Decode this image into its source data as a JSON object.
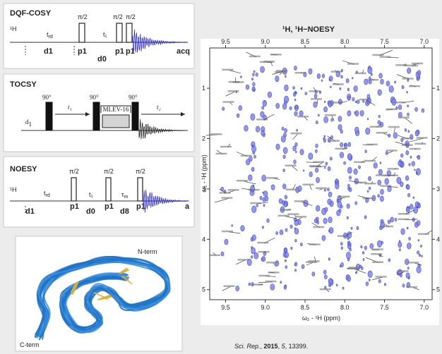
{
  "dqf_cosy": {
    "title": "DQF-COSY",
    "nucleus": "¹H",
    "t_rd": [
      "t",
      "rd"
    ],
    "t1": "t₁",
    "pulse_angles": [
      "π/2",
      "π/2",
      "π/2"
    ],
    "delays": [
      "d1",
      "p1",
      "d0",
      "p1",
      "p1",
      "acq"
    ]
  },
  "tocsy": {
    "title": "TOCSY",
    "pulse_angles": [
      "90°",
      "90°",
      "90°"
    ],
    "t1": "t₁",
    "t2": "t₂",
    "mixing": "MLEV-16",
    "d1": [
      "d",
      "1"
    ]
  },
  "noesy": {
    "title": "NOESY",
    "nucleus": "¹H",
    "t_rd": [
      "t",
      "rd"
    ],
    "t1": "t₁",
    "tau_m": [
      "τ",
      "m"
    ],
    "pulse_angles": [
      "π/2",
      "π/2",
      "π/2"
    ],
    "delays": [
      "d1",
      "p1",
      "d0",
      "p1",
      "d8",
      "p1",
      "a"
    ]
  },
  "structure": {
    "n_term": "N-term",
    "c_term": "C-term"
  },
  "spectrum": {
    "title": "¹H, ¹H−NOESY",
    "x_label": "ω₂ - ¹H (ppm)",
    "y_label": "ω₁ - ¹H (ppm)",
    "xlim": [
      9.7,
      6.9
    ],
    "ylim": [
      0.2,
      5.2
    ],
    "xticks": [
      9.5,
      {
        "value": 9,
        "label": "9.0"
      },
      8.5,
      {
        "value": 8,
        "label": "8.0"
      },
      7.5,
      {
        "value": 7,
        "label": "7.0"
      }
    ],
    "yticks": [
      1,
      2,
      3,
      4,
      5
    ]
  },
  "citation": [
    "Sci. Rep.",
    ", ",
    "2015",
    ", ",
    "5",
    ", 13399."
  ]
}
